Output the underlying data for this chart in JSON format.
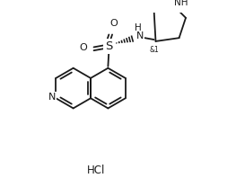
{
  "background_color": "#ffffff",
  "line_color": "#1a1a1a",
  "line_width": 1.3,
  "text_color": "#1a1a1a",
  "font_size": 7.5,
  "hcl_text": "HCl",
  "hcl_fontsize": 8.5,
  "nh_label": "NH",
  "n_label": "N",
  "s_label": "S",
  "o_top_label": "O",
  "o_left_label": "O",
  "and1_label": "&1",
  "h_label": "H"
}
